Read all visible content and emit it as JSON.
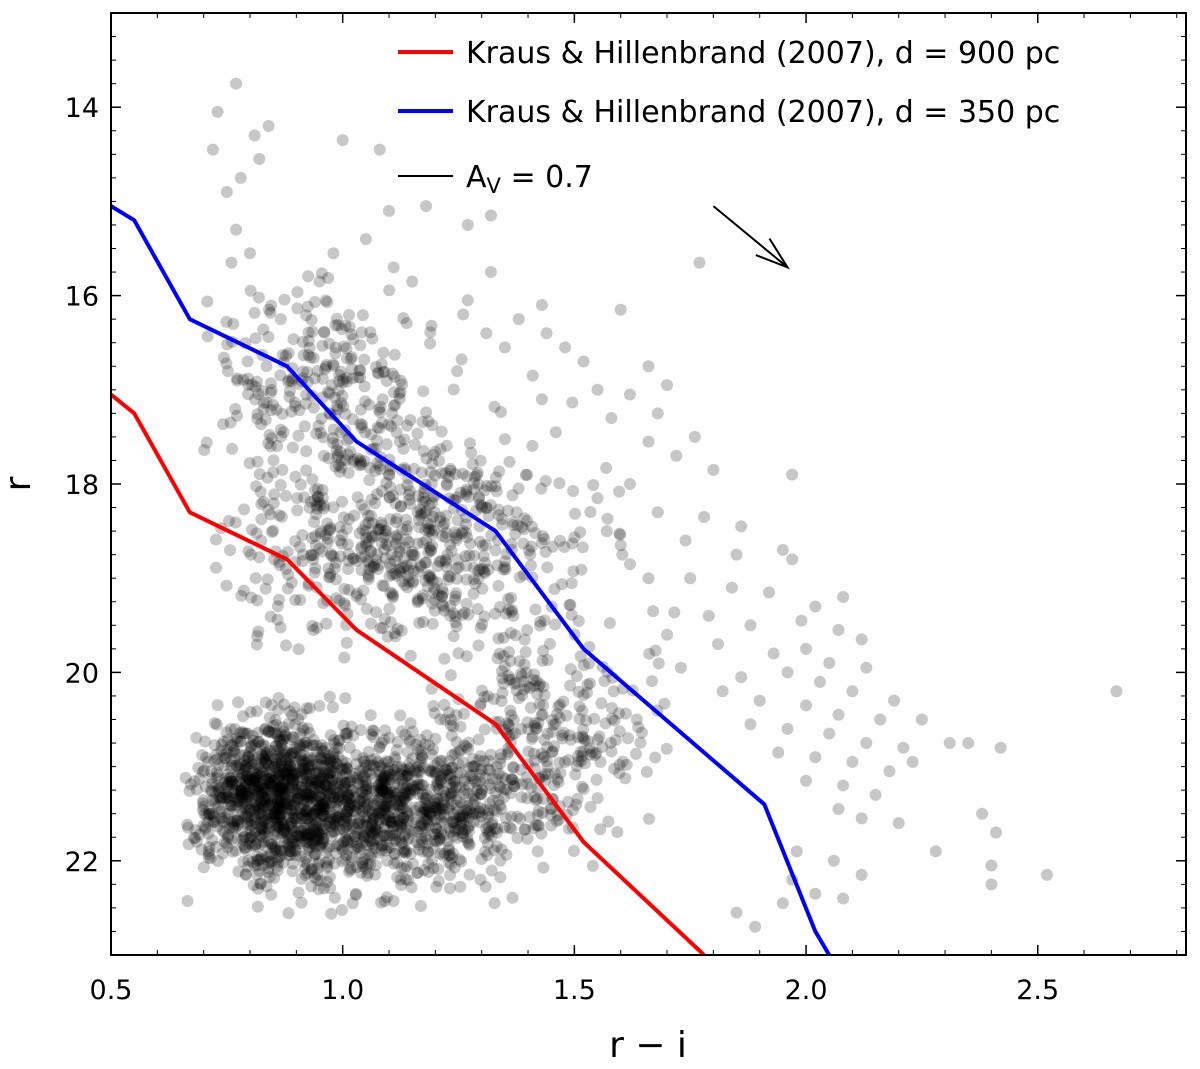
{
  "chart_data": {
    "type": "scatter",
    "title": "",
    "xlabel": "r − i",
    "ylabel": "r",
    "xlim": [
      0.5,
      2.82
    ],
    "ylim": [
      23.0,
      13.0
    ],
    "y_inverted": true,
    "grid": false,
    "x_ticks": [
      0.5,
      1.0,
      1.5,
      2.0,
      2.5
    ],
    "x_tick_labels": [
      "0.5",
      "1.0",
      "1.5",
      "2.0",
      "2.5"
    ],
    "y_ticks": [
      14,
      16,
      18,
      20,
      22
    ],
    "y_tick_labels": [
      "14",
      "16",
      "18",
      "20",
      "22"
    ],
    "legend_position": "top-right",
    "series": [
      {
        "name": "Kraus & Hillenbrand (2007), d = 900 pc",
        "kind": "line",
        "color": "#ff0000",
        "points": [
          [
            0.5,
            17.05
          ],
          [
            0.55,
            17.25
          ],
          [
            0.67,
            18.3
          ],
          [
            0.88,
            18.8
          ],
          [
            1.03,
            19.55
          ],
          [
            1.33,
            20.55
          ],
          [
            1.52,
            21.8
          ],
          [
            1.78,
            23.0
          ]
        ]
      },
      {
        "name": "Kraus & Hillenbrand (2007), d = 350 pc",
        "kind": "line",
        "color": "#0000ff",
        "points": [
          [
            0.5,
            15.05
          ],
          [
            0.55,
            15.2
          ],
          [
            0.67,
            16.25
          ],
          [
            0.88,
            16.75
          ],
          [
            1.03,
            17.55
          ],
          [
            1.33,
            18.5
          ],
          [
            1.52,
            19.75
          ],
          [
            1.91,
            21.4
          ],
          [
            2.02,
            22.75
          ],
          [
            2.05,
            23.0
          ]
        ]
      },
      {
        "name": "stars",
        "kind": "scatter",
        "color": "#000000",
        "opacity": 0.22,
        "points": [
          [
            0.77,
            13.75
          ],
          [
            0.73,
            14.05
          ],
          [
            0.84,
            14.2
          ],
          [
            0.81,
            14.3
          ],
          [
            1.0,
            14.35
          ],
          [
            1.08,
            14.45
          ],
          [
            0.72,
            14.45
          ],
          [
            0.75,
            14.9
          ],
          [
            0.78,
            14.75
          ],
          [
            0.82,
            14.55
          ],
          [
            1.18,
            15.05
          ],
          [
            1.1,
            15.1
          ],
          [
            1.27,
            15.25
          ],
          [
            1.32,
            15.15
          ],
          [
            0.77,
            15.3
          ],
          [
            0.8,
            15.55
          ],
          [
            0.98,
            15.55
          ],
          [
            1.05,
            15.4
          ],
          [
            1.11,
            15.7
          ],
          [
            1.32,
            15.75
          ],
          [
            0.76,
            15.65
          ],
          [
            1.77,
            15.65
          ],
          [
            1.15,
            15.85
          ],
          [
            0.95,
            15.85
          ],
          [
            1.27,
            16.05
          ],
          [
            1.26,
            16.2
          ],
          [
            1.38,
            16.25
          ],
          [
            1.43,
            16.1
          ],
          [
            1.6,
            16.15
          ],
          [
            1.31,
            16.4
          ],
          [
            1.35,
            16.55
          ],
          [
            1.44,
            16.4
          ],
          [
            1.48,
            16.55
          ],
          [
            1.52,
            16.7
          ],
          [
            1.66,
            16.75
          ],
          [
            1.41,
            16.85
          ],
          [
            1.55,
            17.0
          ],
          [
            1.43,
            17.1
          ],
          [
            1.62,
            17.05
          ],
          [
            1.7,
            16.95
          ],
          [
            1.68,
            17.25
          ],
          [
            1.58,
            17.3
          ],
          [
            1.46,
            17.45
          ],
          [
            1.66,
            17.55
          ],
          [
            1.76,
            17.5
          ],
          [
            1.72,
            17.7
          ],
          [
            1.8,
            17.85
          ],
          [
            1.97,
            17.9
          ],
          [
            1.62,
            18.0
          ],
          [
            1.55,
            18.15
          ],
          [
            1.68,
            18.3
          ],
          [
            1.78,
            18.35
          ],
          [
            1.86,
            18.45
          ],
          [
            1.57,
            18.5
          ],
          [
            1.6,
            18.65
          ],
          [
            1.74,
            18.6
          ],
          [
            1.85,
            18.75
          ],
          [
            1.95,
            18.7
          ],
          [
            1.97,
            18.8
          ],
          [
            1.62,
            18.85
          ],
          [
            1.66,
            19.0
          ],
          [
            1.75,
            19.0
          ],
          [
            1.84,
            19.1
          ],
          [
            1.92,
            19.15
          ],
          [
            2.02,
            19.3
          ],
          [
            2.08,
            19.2
          ],
          [
            1.67,
            19.35
          ],
          [
            1.79,
            19.4
          ],
          [
            1.88,
            19.5
          ],
          [
            1.99,
            19.45
          ],
          [
            2.07,
            19.55
          ],
          [
            2.12,
            19.65
          ],
          [
            1.7,
            19.6
          ],
          [
            1.81,
            19.7
          ],
          [
            1.93,
            19.8
          ],
          [
            2.0,
            19.75
          ],
          [
            2.05,
            19.9
          ],
          [
            2.13,
            19.95
          ],
          [
            1.73,
            19.95
          ],
          [
            1.86,
            20.05
          ],
          [
            1.96,
            20.0
          ],
          [
            2.03,
            20.1
          ],
          [
            2.1,
            20.2
          ],
          [
            2.19,
            20.3
          ],
          [
            1.82,
            20.2
          ],
          [
            1.9,
            20.3
          ],
          [
            2.0,
            20.35
          ],
          [
            2.07,
            20.45
          ],
          [
            2.16,
            20.5
          ],
          [
            2.25,
            20.5
          ],
          [
            1.88,
            20.55
          ],
          [
            1.96,
            20.6
          ],
          [
            2.05,
            20.65
          ],
          [
            2.13,
            20.75
          ],
          [
            2.21,
            20.8
          ],
          [
            2.31,
            20.75
          ],
          [
            1.94,
            20.85
          ],
          [
            2.02,
            20.9
          ],
          [
            2.1,
            20.95
          ],
          [
            2.18,
            21.05
          ],
          [
            2.23,
            20.95
          ],
          [
            2.35,
            20.75
          ],
          [
            2.0,
            21.15
          ],
          [
            2.08,
            21.2
          ],
          [
            2.15,
            21.3
          ],
          [
            2.38,
            21.5
          ],
          [
            2.42,
            20.8
          ],
          [
            2.67,
            20.2
          ],
          [
            2.07,
            21.45
          ],
          [
            2.12,
            21.55
          ],
          [
            2.2,
            21.6
          ],
          [
            2.28,
            21.9
          ],
          [
            2.41,
            21.7
          ],
          [
            2.4,
            22.05
          ],
          [
            2.52,
            22.15
          ],
          [
            2.4,
            22.25
          ],
          [
            1.98,
            21.9
          ],
          [
            2.06,
            22.0
          ],
          [
            2.12,
            22.15
          ],
          [
            2.08,
            22.4
          ],
          [
            2.02,
            22.35
          ],
          [
            1.95,
            22.45
          ],
          [
            1.97,
            22.2
          ],
          [
            1.89,
            22.7
          ],
          [
            1.85,
            22.55
          ]
        ]
      }
    ],
    "arrow_annotation": {
      "label": "A",
      "subscript": "V",
      "value_text": "= 0.7",
      "from": [
        1.8,
        15.05
      ],
      "to": [
        1.96,
        15.7
      ]
    }
  },
  "legend": [
    {
      "label": "Kraus & Hillenbrand (2007), d = 900 pc",
      "color": "#ff0000"
    },
    {
      "label": "Kraus & Hillenbrand (2007), d = 350 pc",
      "color": "#0000ff"
    },
    {
      "label_main": "A",
      "label_sub": "V",
      "label_tail": " = 0.7",
      "color": "#000000"
    }
  ]
}
